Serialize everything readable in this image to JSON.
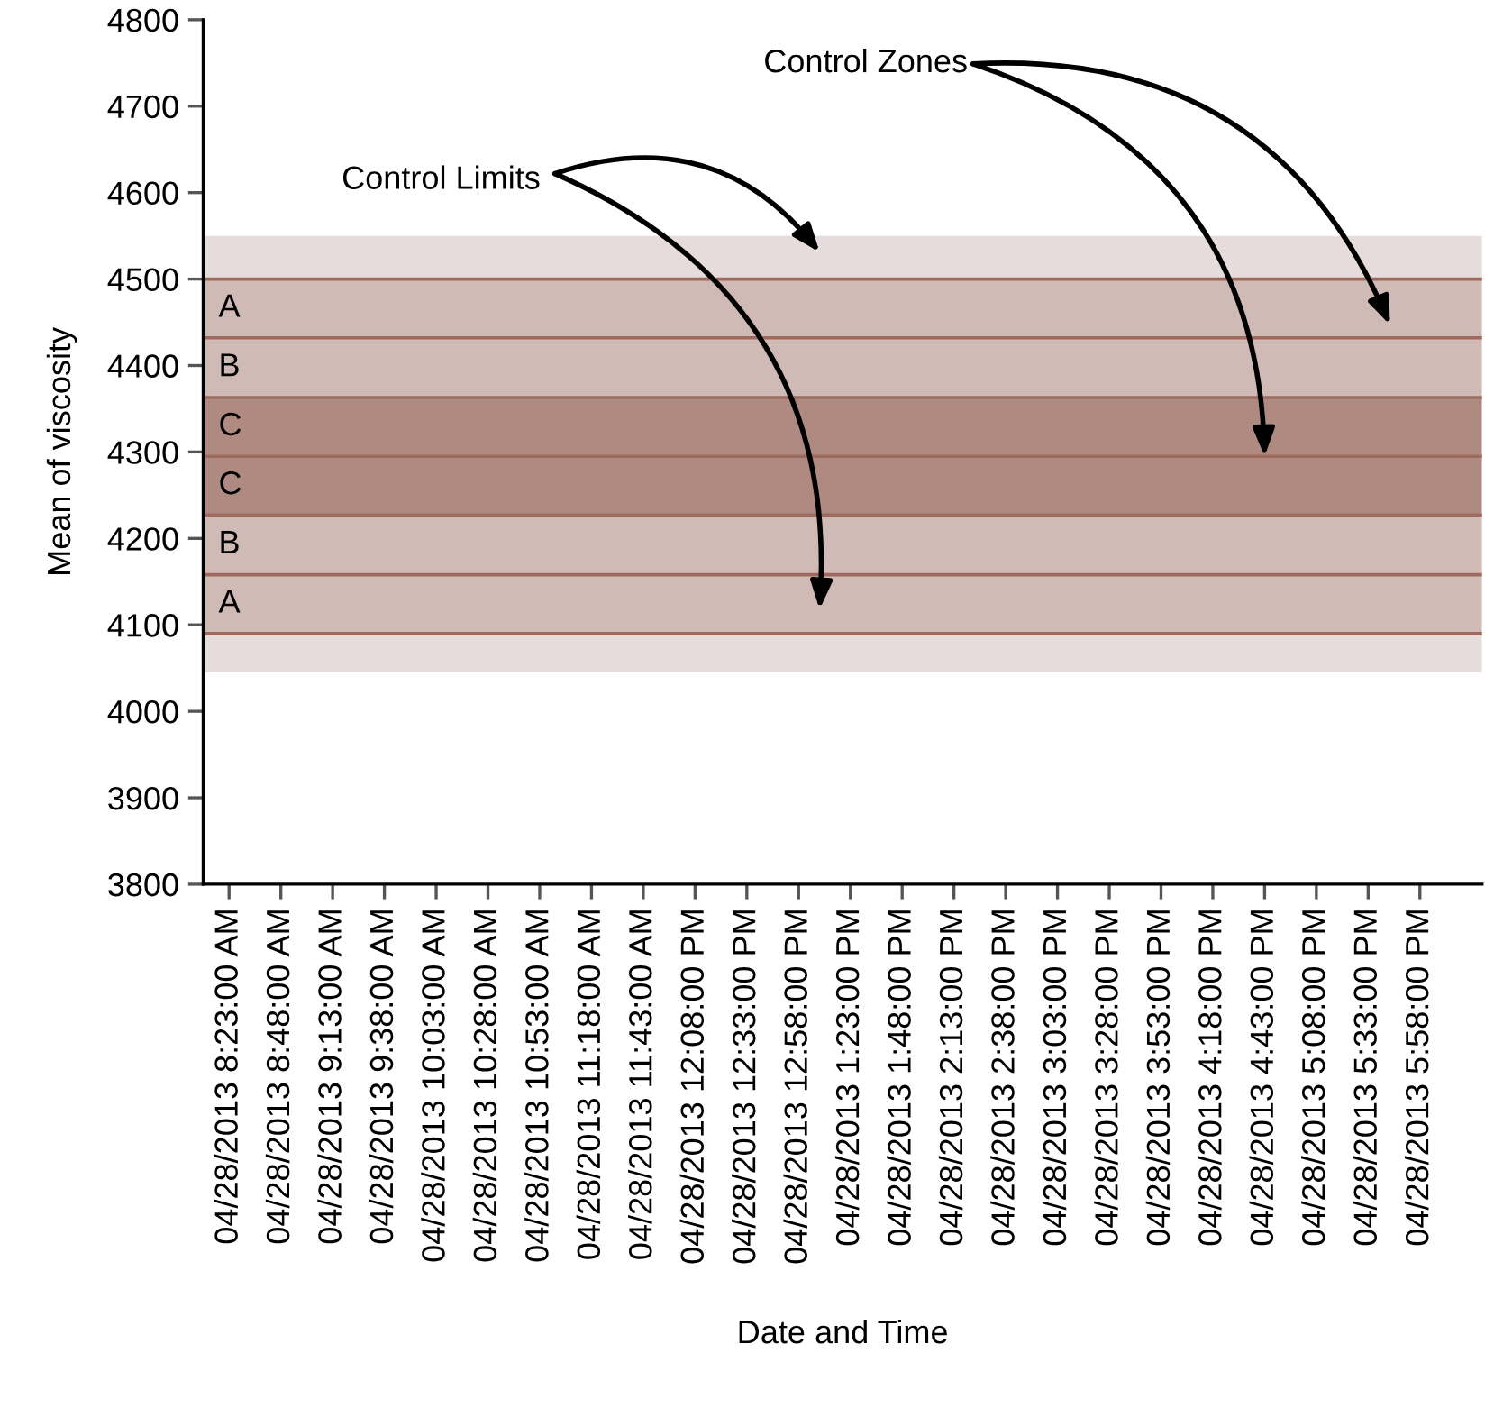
{
  "chart_data": {
    "type": "line",
    "xlabel": "Date and Time",
    "ylabel": "Mean of viscosity",
    "categories": [
      "04/28/2013 8:23:00 AM",
      "04/28/2013 8:48:00 AM",
      "04/28/2013 9:13:00 AM",
      "04/28/2013 9:38:00 AM",
      "04/28/2013 10:03:00 AM",
      "04/28/2013 10:28:00 AM",
      "04/28/2013 10:53:00 AM",
      "04/28/2013 11:18:00 AM",
      "04/28/2013 11:43:00 AM",
      "04/28/2013 12:08:00 PM",
      "04/28/2013 12:33:00 PM",
      "04/28/2013 12:58:00 PM",
      "04/28/2013 1:23:00 PM",
      "04/28/2013 1:48:00 PM",
      "04/28/2013 2:13:00 PM",
      "04/28/2013 2:38:00 PM",
      "04/28/2013 3:03:00 PM",
      "04/28/2013 3:28:00 PM",
      "04/28/2013 3:53:00 PM",
      "04/28/2013 4:18:00 PM",
      "04/28/2013 4:43:00 PM",
      "04/28/2013 5:08:00 PM",
      "04/28/2013 5:33:00 PM",
      "04/28/2013 5:58:00 PM"
    ],
    "values": [
      null,
      null,
      null,
      null,
      null,
      null,
      null,
      null,
      null,
      null,
      null,
      null,
      null,
      null,
      null,
      null,
      null,
      null,
      null,
      null,
      null,
      null,
      null,
      null
    ],
    "ylim": [
      3800,
      4800
    ],
    "yticks": [
      3800,
      3900,
      4000,
      4100,
      4200,
      4300,
      4400,
      4500,
      4600,
      4700,
      4800
    ],
    "grid": false,
    "legend": false,
    "bands": [
      {
        "axis": "y",
        "from": 4500,
        "to": 4550,
        "color": "#e5dcdb"
      },
      {
        "axis": "y",
        "from": 4045,
        "to": 4090,
        "color": "#e5dcdb"
      },
      {
        "axis": "y",
        "from": 4432,
        "to": 4500,
        "label": "A",
        "color": "#cfbab5"
      },
      {
        "axis": "y",
        "from": 4363,
        "to": 4432,
        "label": "B",
        "color": "#cfbab5"
      },
      {
        "axis": "y",
        "from": 4295,
        "to": 4363,
        "label": "C",
        "color": "#ae8a81"
      },
      {
        "axis": "y",
        "from": 4227,
        "to": 4295,
        "label": "C",
        "color": "#ae8a81"
      },
      {
        "axis": "y",
        "from": 4158,
        "to": 4227,
        "label": "B",
        "color": "#cfbab5"
      },
      {
        "axis": "y",
        "from": 4090,
        "to": 4158,
        "label": "A",
        "color": "#cfbab5"
      }
    ],
    "ref_lines": [
      {
        "axis": "y",
        "value": 4500,
        "color": "#9c6a5e"
      },
      {
        "axis": "y",
        "value": 4432,
        "color": "#9c6a5e"
      },
      {
        "axis": "y",
        "value": 4363,
        "color": "#9c6a5e"
      },
      {
        "axis": "y",
        "value": 4295,
        "color": "#9c6a5e"
      },
      {
        "axis": "y",
        "value": 4227,
        "color": "#9c6a5e"
      },
      {
        "axis": "y",
        "value": 4158,
        "color": "#9c6a5e"
      },
      {
        "axis": "y",
        "value": 4090,
        "color": "#9c6a5e"
      }
    ],
    "annotations": [
      "Control Limits",
      {
        "text": "Control Zones",
        "x": "04/28/2013 4:43:00 PM",
        "y": 4295
      }
    ]
  }
}
